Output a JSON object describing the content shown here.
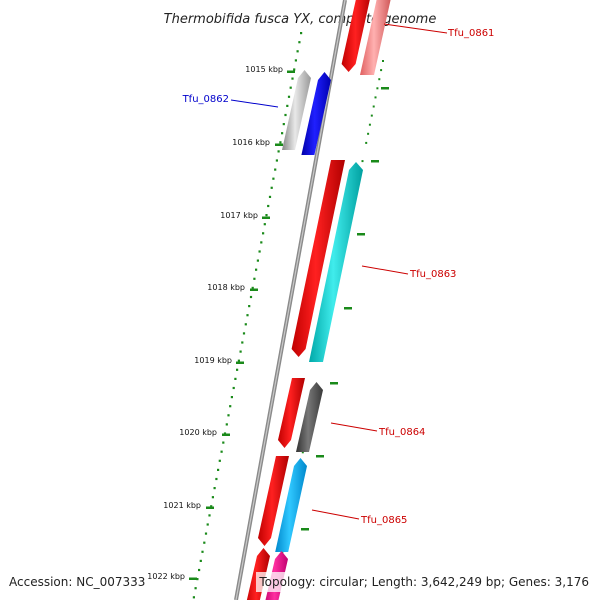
{
  "title": "Thermobifida fusca YX, complete genome",
  "footer": {
    "accession": "Accession: NC_007333",
    "summary": "Topology: circular; Length: 3,642,249 bp; Genes: 3,176"
  },
  "colors": {
    "backbone": "#777777",
    "ticks": "#1a8a1a",
    "label_red": "#cc0000",
    "label_blue": "#0000cc"
  },
  "positions": [
    {
      "label": "1015 kbp"
    },
    {
      "label": "1016 kbp"
    },
    {
      "label": "1017 kbp"
    },
    {
      "label": "1018 kbp"
    },
    {
      "label": "1019 kbp"
    },
    {
      "label": "1020 kbp"
    },
    {
      "label": "1021 kbp"
    },
    {
      "label": "1022 kbp"
    }
  ],
  "genes": [
    {
      "name": "Tfu_0861",
      "label_color": "red"
    },
    {
      "name": "Tfu_0862",
      "label_color": "blue"
    },
    {
      "name": "Tfu_0863",
      "label_color": "red"
    },
    {
      "name": "Tfu_0864",
      "label_color": "red"
    },
    {
      "name": "Tfu_0865",
      "label_color": "red"
    }
  ]
}
